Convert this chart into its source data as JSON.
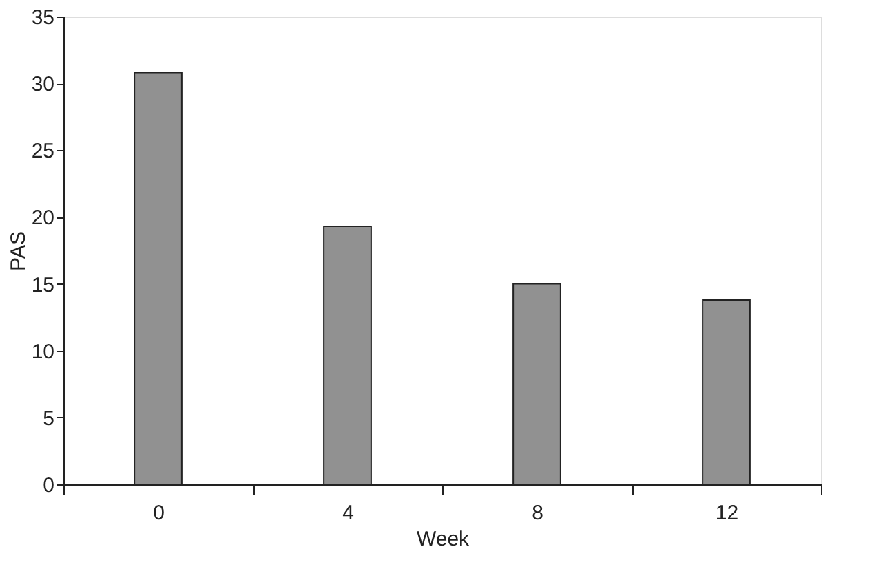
{
  "chart_data": {
    "type": "bar",
    "xlabel": "Week",
    "ylabel": "PAS",
    "categories": [
      "0",
      "4",
      "8",
      "12"
    ],
    "values": [
      30.8,
      19.3,
      15.0,
      13.8
    ],
    "color": "#919191",
    "ylim": [
      0,
      35
    ],
    "yticks": [
      0,
      5,
      10,
      15,
      20,
      25,
      30,
      35
    ],
    "grid": false
  }
}
